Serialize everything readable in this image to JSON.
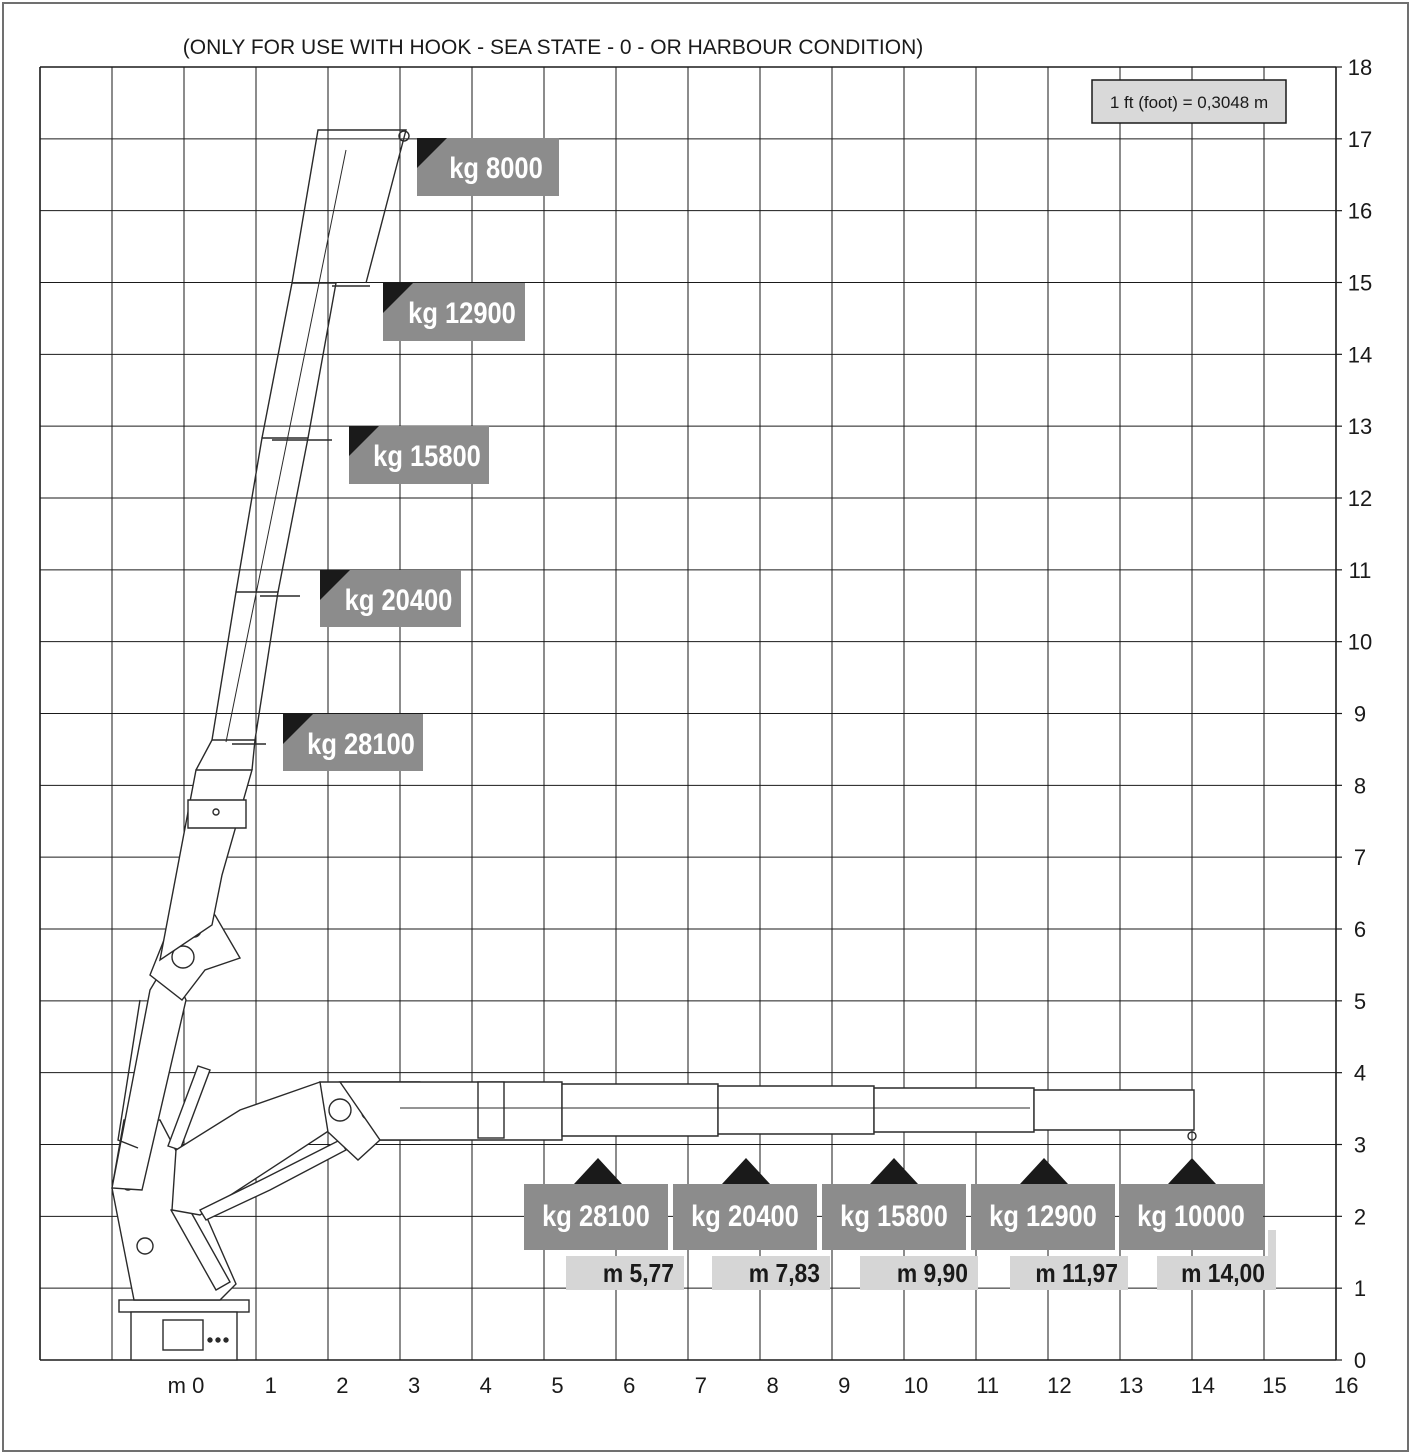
{
  "header": {
    "condition_note": "(ONLY FOR USE WITH HOOK - SEA STATE - 0 - OR HARBOUR CONDITION)",
    "unit_note": "1 ft (foot) = 0,3048 m"
  },
  "colors": {
    "grid": "#1a1a1a",
    "badge_dark": "#8c8c8c",
    "badge_light": "#d6d6d6",
    "badge_corner": "#1a1a1a",
    "boom_stroke": "#2a2a2a",
    "unit_box": "#d9d9d9"
  },
  "axes": {
    "x_first_label": "m 0",
    "x_labels": [
      "1",
      "2",
      "3",
      "4",
      "5",
      "6",
      "7",
      "8",
      "9",
      "10",
      "11",
      "12",
      "13",
      "14",
      "15",
      "16"
    ],
    "y_labels": [
      "0",
      "1",
      "2",
      "3",
      "4",
      "5",
      "6",
      "7",
      "8",
      "9",
      "10",
      "11",
      "12",
      "13",
      "14",
      "15",
      "16",
      "17",
      "18"
    ]
  },
  "vertical_capacities": [
    {
      "load": "kg 8000"
    },
    {
      "load": "kg 12900"
    },
    {
      "load": "kg 15800"
    },
    {
      "load": "kg 20400"
    },
    {
      "load": "kg 28100"
    }
  ],
  "horizontal_capacities": [
    {
      "load": "kg 28100",
      "reach": "m 5,77"
    },
    {
      "load": "kg 20400",
      "reach": "m 7,83"
    },
    {
      "load": "kg 15800",
      "reach": "m 9,90"
    },
    {
      "load": "kg 12900",
      "reach": "m 11,97"
    },
    {
      "load": "kg 10000",
      "reach": "m 14,00"
    }
  ]
}
